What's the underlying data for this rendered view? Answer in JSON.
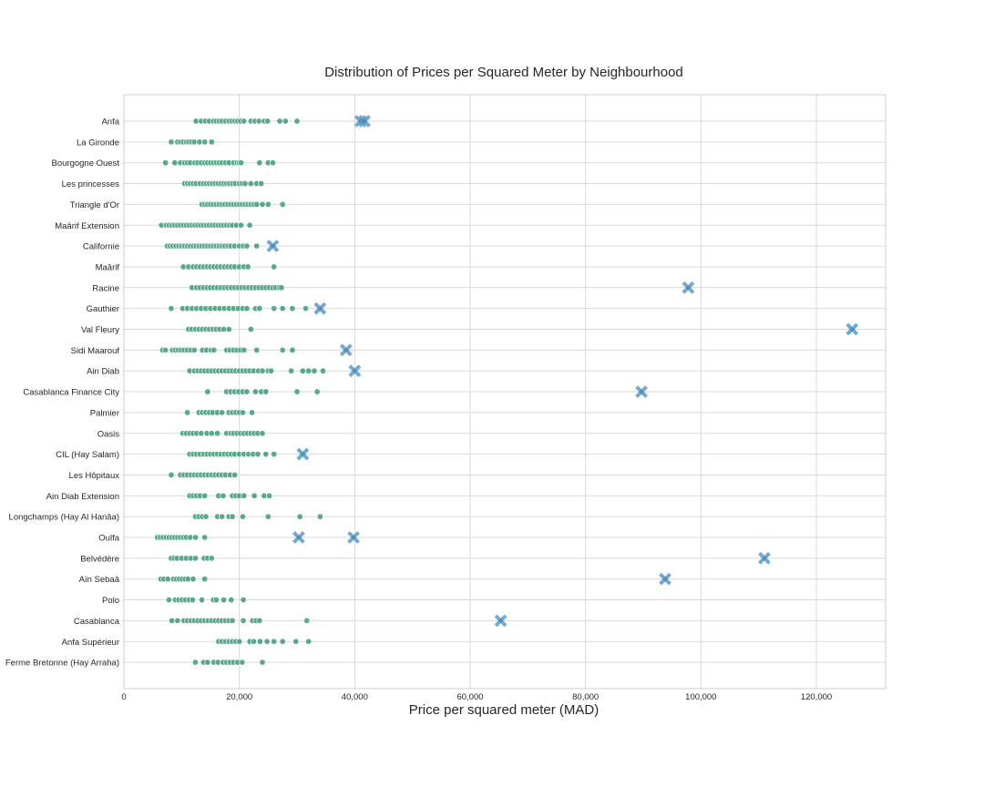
{
  "chart_data": {
    "type": "scatter",
    "title": "Distribution of Prices per Squared Meter by Neighbourhood",
    "xlabel": "Price per squared meter (MAD)",
    "ylabel": "",
    "xlim": [
      0,
      132000
    ],
    "x_ticks": [
      0,
      20000,
      40000,
      60000,
      80000,
      100000,
      120000
    ],
    "x_tick_labels": [
      "0",
      "20,000",
      "40,000",
      "60,000",
      "80,000",
      "100,000",
      "120,000"
    ],
    "grid": true,
    "colors": {
      "points": "#5aa889",
      "outliers": "#5b9cc9",
      "grid": "#d9d9d9"
    },
    "categories": [
      "Anfa",
      "La Gironde",
      "Bourgogne Ouest",
      "Les princesses",
      "Triangle d'Or",
      "Maârif Extension",
      "Californie",
      "Maârif",
      "Racine",
      "Gauthier",
      "Val Fleury",
      "Sidi Maarouf",
      "Ain Diab",
      "Casablanca Finance City",
      "Palmier",
      "Oasis",
      "CIL (Hay Salam)",
      "Les Hôpitaux",
      "Ain Diab Extension",
      "Longchamps (Hay Al Hanâa)",
      "Oulfa",
      "Belvédère",
      "Aïn Sebaâ",
      "Polo",
      "Casablanca",
      "Anfa Supérieur",
      "Ferme Bretonne (Hay Arraha)"
    ],
    "series": [
      {
        "values": [
          [
            12500,
            13400,
            14100,
            14800,
            15500,
            16000,
            16500,
            17000,
            17600,
            18200,
            18700,
            19200,
            19700,
            20200,
            20800,
            22000,
            22700,
            23400,
            24300,
            24900,
            27000,
            28000,
            30000
          ],
          [
            8200,
            9300,
            9800,
            10300,
            10800,
            11200,
            11700,
            12200,
            13100,
            14000,
            15200
          ],
          [
            7200,
            8800,
            9800,
            10500,
            11000,
            11500,
            12300,
            12800,
            13400,
            14000,
            14500,
            15000,
            15500,
            16000,
            16500,
            17000,
            17600,
            18200,
            19000,
            19600,
            20000,
            20300,
            23500,
            25000,
            25800
          ],
          [
            10500,
            11000,
            11500,
            12000,
            12500,
            13200,
            13800,
            14300,
            14800,
            15300,
            15800,
            16300,
            16800,
            17300,
            17800,
            18300,
            18800,
            19300,
            20000,
            20500,
            21000,
            22000,
            23000,
            23800
          ],
          [
            13500,
            14000,
            14500,
            15000,
            15500,
            16000,
            16500,
            17000,
            17500,
            18000,
            18500,
            19000,
            19500,
            20000,
            20500,
            21000,
            21500,
            22000,
            22500,
            23000,
            24000,
            25000,
            27500
          ],
          [
            6500,
            7300,
            7800,
            8300,
            8800,
            9300,
            9800,
            10300,
            10800,
            11300,
            11800,
            12300,
            12800,
            13300,
            13800,
            14300,
            14800,
            15300,
            15800,
            16300,
            16800,
            17300,
            17800,
            18300,
            18800,
            19500,
            20300,
            21800
          ],
          [
            7500,
            8000,
            8500,
            9000,
            9500,
            10000,
            10500,
            11000,
            11500,
            12000,
            12500,
            13000,
            13500,
            14000,
            14500,
            15000,
            15500,
            16000,
            16500,
            17000,
            17500,
            18000,
            18500,
            19200,
            20000,
            20700,
            21300,
            23000
          ],
          [
            10300,
            11200,
            12000,
            12600,
            13200,
            13800,
            14400,
            15000,
            15600,
            16200,
            16800,
            17400,
            18000,
            18600,
            19200,
            20000,
            20800,
            21500,
            26000
          ],
          [
            11800,
            12600,
            13200,
            13800,
            14400,
            15000,
            15600,
            16200,
            16800,
            17400,
            18000,
            18600,
            19200,
            19800,
            20400,
            21000,
            21600,
            22200,
            22800,
            23400,
            24000,
            24600,
            25200,
            25800,
            26300,
            26900,
            27300
          ],
          [
            8200,
            10200,
            11000,
            11800,
            12600,
            13400,
            14200,
            15000,
            15800,
            16600,
            17400,
            18200,
            19000,
            19800,
            20600,
            21300,
            22800,
            23500,
            26000,
            27500,
            29200,
            31500
          ],
          [
            11200,
            11800,
            12400,
            13000,
            13600,
            14200,
            14800,
            15400,
            16000,
            16600,
            17300,
            18200,
            22000
          ],
          [
            6700,
            7200,
            8400,
            8900,
            9400,
            9900,
            10400,
            11000,
            11600,
            12200,
            13600,
            14300,
            15100,
            15600,
            17800,
            18400,
            19000,
            19600,
            20200,
            20800,
            23000,
            27500,
            29200
          ],
          [
            11400,
            12200,
            12800,
            13400,
            14000,
            14600,
            15200,
            15800,
            16400,
            17000,
            17600,
            18200,
            18800,
            19400,
            20000,
            20600,
            21200,
            21800,
            22500,
            23300,
            24000,
            25000,
            25500,
            29000,
            31000,
            32000,
            33000,
            34500
          ],
          [
            14500,
            17800,
            18500,
            19200,
            19900,
            20600,
            21300,
            22800,
            23800,
            24600,
            30000,
            33500
          ],
          [
            11000,
            13000,
            13600,
            14200,
            14800,
            15400,
            16200,
            17000,
            18200,
            18800,
            19400,
            20000,
            20600,
            22200
          ],
          [
            10200,
            10800,
            11400,
            12000,
            12600,
            13400,
            14400,
            15200,
            16200,
            17800,
            18500,
            19000,
            19600,
            20200,
            20800,
            21400,
            22000,
            22600,
            23200,
            24000
          ],
          [
            11400,
            12000,
            12600,
            13200,
            13800,
            14400,
            15000,
            15600,
            16200,
            16800,
            17400,
            18000,
            18600,
            19200,
            20000,
            20800,
            21600,
            22400,
            23200,
            24600,
            26000
          ],
          [
            8200,
            9800,
            10400,
            11000,
            11600,
            12200,
            12800,
            13400,
            14000,
            14600,
            15200,
            15800,
            16400,
            17000,
            17600,
            18400,
            19200
          ],
          [
            11400,
            12000,
            12600,
            13200,
            14000,
            16400,
            17200,
            18800,
            19400,
            20000,
            20800,
            22600,
            24300,
            25200
          ],
          [
            12400,
            13000,
            13600,
            14200,
            16200,
            17000,
            18200,
            18800,
            20600,
            25000,
            30500,
            34000
          ],
          [
            5800,
            6300,
            6800,
            7300,
            7800,
            8300,
            8800,
            9300,
            9800,
            10300,
            10800,
            11500,
            12400,
            14000
          ],
          [
            8200,
            8700,
            9200,
            10000,
            10800,
            11600,
            12400,
            13900,
            14500,
            15200
          ],
          [
            6400,
            6900,
            7600,
            8600,
            9100,
            9600,
            10100,
            10600,
            11100,
            12000,
            14000
          ],
          [
            7800,
            8900,
            9500,
            10100,
            10700,
            11300,
            11900,
            13500,
            15500,
            16000,
            17300,
            18600,
            20700
          ],
          [
            8300,
            9300,
            10400,
            11000,
            11600,
            12200,
            12800,
            13400,
            14000,
            14600,
            15200,
            15800,
            16400,
            17000,
            17600,
            18200,
            18800,
            20700,
            22300,
            22900,
            23500,
            31700
          ],
          [
            16400,
            17000,
            17600,
            18200,
            18800,
            19400,
            20000,
            21800,
            22500,
            23600,
            24800,
            26000,
            27500,
            29800,
            32000
          ],
          [
            12400,
            13800,
            14500,
            15600,
            16300,
            17200,
            17800,
            18400,
            19000,
            19700,
            20500,
            24000
          ]
        ]
      }
    ],
    "outliers": [
      [
        41000,
        41700
      ],
      [],
      [],
      [],
      [],
      [],
      [
        25800
      ],
      [],
      [
        97800
      ],
      [
        34000
      ],
      [
        126200
      ],
      [
        38500
      ],
      [
        40000
      ],
      [
        89700
      ],
      [],
      [],
      [
        31000
      ],
      [],
      [],
      [],
      [
        30300,
        39800
      ],
      [
        111000
      ],
      [
        93800
      ],
      [],
      [
        65300
      ],
      [],
      []
    ]
  }
}
